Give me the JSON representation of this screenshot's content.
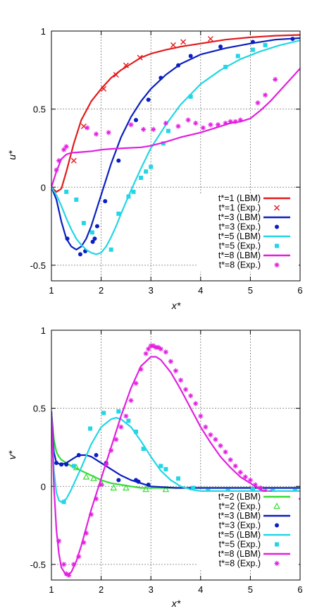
{
  "colors": {
    "t1": "#e41a1c",
    "t2": "#33dd33",
    "t3": "#0a1fbf",
    "t5": "#22d6e6",
    "t8": "#e21fe0"
  },
  "chart_data": [
    {
      "type": "line",
      "ylabel": "u*",
      "xlabel": "x*",
      "xlim": [
        1,
        6
      ],
      "ylim": [
        -0.6,
        1
      ],
      "xticks": [
        "1",
        "2",
        "3",
        "4",
        "5",
        "6"
      ],
      "yticks": [
        {
          "v": 1,
          "label": "1"
        },
        {
          "v": 0.5,
          "label": "0.5"
        },
        {
          "v": 0,
          "label": "0"
        },
        {
          "v": -0.5,
          "label": "-0.5"
        }
      ],
      "grid": true,
      "legend_position": "bottom-right",
      "series": [
        {
          "name": "t*=1 (LBM)",
          "color": "#e41a1c",
          "kind": "line",
          "x": [
            1.0,
            1.1,
            1.2,
            1.3,
            1.45,
            1.6,
            1.8,
            2.0,
            2.2,
            2.4,
            2.6,
            2.8,
            3.0,
            3.3,
            3.6,
            4.0,
            4.5,
            5.0,
            5.5,
            6.0
          ],
          "y": [
            0.0,
            -0.03,
            -0.01,
            0.1,
            0.28,
            0.43,
            0.55,
            0.63,
            0.7,
            0.75,
            0.79,
            0.83,
            0.855,
            0.88,
            0.9,
            0.92,
            0.945,
            0.96,
            0.97,
            0.975
          ]
        },
        {
          "name": "t*=1 (Exp.)",
          "color": "#e41a1c",
          "kind": "x",
          "x": [
            1.45,
            1.65,
            2.05,
            2.3,
            2.5,
            2.78,
            3.45,
            3.65,
            4.2
          ],
          "y": [
            0.17,
            0.39,
            0.63,
            0.72,
            0.78,
            0.83,
            0.91,
            0.93,
            0.95
          ]
        },
        {
          "name": "t*=3 (LBM)",
          "color": "#0a1fbf",
          "kind": "line",
          "x": [
            1.0,
            1.1,
            1.2,
            1.3,
            1.4,
            1.5,
            1.6,
            1.7,
            1.8,
            2.0,
            2.2,
            2.4,
            2.6,
            2.8,
            3.0,
            3.3,
            3.6,
            4.0,
            4.5,
            5.0,
            5.5,
            6.0
          ],
          "y": [
            0.0,
            -0.08,
            -0.22,
            -0.33,
            -0.38,
            -0.4,
            -0.38,
            -0.33,
            -0.25,
            -0.05,
            0.15,
            0.32,
            0.45,
            0.55,
            0.63,
            0.72,
            0.79,
            0.85,
            0.89,
            0.92,
            0.945,
            0.955
          ]
        },
        {
          "name": "t*=3 (Exp.)",
          "color": "#0a1fbf",
          "kind": "dot",
          "x": [
            1.32,
            1.58,
            1.68,
            1.83,
            1.87,
            1.92,
            2.08,
            2.35,
            2.7,
            2.95,
            3.2,
            3.55,
            3.8,
            4.4,
            5.05,
            5.85
          ],
          "y": [
            -0.33,
            -0.43,
            -0.41,
            -0.35,
            -0.33,
            -0.25,
            -0.09,
            0.17,
            0.43,
            0.56,
            0.7,
            0.78,
            0.84,
            0.9,
            0.93,
            0.95
          ]
        },
        {
          "name": "t*=5 (LBM)",
          "color": "#22d6e6",
          "kind": "line",
          "x": [
            1.0,
            1.1,
            1.2,
            1.3,
            1.4,
            1.5,
            1.6,
            1.7,
            1.8,
            1.9,
            2.0,
            2.1,
            2.2,
            2.3,
            2.4,
            2.6,
            2.8,
            3.0,
            3.3,
            3.6,
            4.0,
            4.4,
            4.8,
            5.2,
            5.6,
            6.0
          ],
          "y": [
            0.0,
            -0.05,
            -0.12,
            -0.2,
            -0.27,
            -0.33,
            -0.37,
            -0.4,
            -0.42,
            -0.43,
            -0.42,
            -0.38,
            -0.32,
            -0.25,
            -0.17,
            -0.02,
            0.12,
            0.25,
            0.4,
            0.53,
            0.66,
            0.75,
            0.82,
            0.87,
            0.91,
            0.94
          ]
        },
        {
          "name": "t*=5 (Exp.)",
          "color": "#22d6e6",
          "kind": "sq",
          "x": [
            1.3,
            1.5,
            1.65,
            1.82,
            2.2,
            2.35,
            2.55,
            2.65,
            2.8,
            2.9,
            3.0,
            3.25,
            3.35,
            3.8,
            4.5,
            4.75,
            5.05,
            5.3
          ],
          "y": [
            -0.03,
            -0.08,
            -0.23,
            -0.29,
            -0.4,
            -0.17,
            -0.06,
            -0.03,
            0.06,
            0.1,
            0.13,
            0.28,
            0.36,
            0.58,
            0.77,
            0.84,
            0.88,
            0.91
          ]
        },
        {
          "name": "t*=8 (LBM)",
          "color": "#e21fe0",
          "kind": "line",
          "x": [
            1.0,
            1.1,
            1.2,
            1.3,
            1.4,
            1.6,
            1.8,
            2.0,
            2.2,
            2.5,
            2.8,
            3.0,
            3.3,
            3.6,
            4.0,
            4.3,
            4.6,
            4.8,
            5.0,
            5.2,
            5.4,
            5.6,
            5.8,
            6.0
          ],
          "y": [
            0.0,
            0.1,
            0.18,
            0.21,
            0.22,
            0.225,
            0.23,
            0.24,
            0.245,
            0.25,
            0.255,
            0.265,
            0.29,
            0.32,
            0.35,
            0.38,
            0.41,
            0.42,
            0.44,
            0.49,
            0.55,
            0.62,
            0.69,
            0.76
          ]
        },
        {
          "name": "t*=8 (Exp.)",
          "color": "#e21fe0",
          "kind": "star",
          "x": [
            1.1,
            1.15,
            1.25,
            1.3,
            1.72,
            1.9,
            2.15,
            2.6,
            2.85,
            3.05,
            3.3,
            3.55,
            3.75,
            3.9,
            4.05,
            4.2,
            4.35,
            4.5,
            4.6,
            4.7,
            4.8,
            5.15,
            5.3,
            5.5
          ],
          "y": [
            0.11,
            0.17,
            0.24,
            0.26,
            0.38,
            0.34,
            0.35,
            0.4,
            0.37,
            0.37,
            0.41,
            0.39,
            0.43,
            0.41,
            0.38,
            0.4,
            0.4,
            0.41,
            0.42,
            0.42,
            0.43,
            0.54,
            0.59,
            0.69
          ]
        }
      ],
      "legend": [
        {
          "label": "t*=1 (LBM)",
          "color": "#e41a1c",
          "kind": "line"
        },
        {
          "label": "t*=1 (Exp.)",
          "color": "#e41a1c",
          "kind": "x"
        },
        {
          "label": "t*=3 (LBM)",
          "color": "#0a1fbf",
          "kind": "line"
        },
        {
          "label": "t*=3 (Exp.)",
          "color": "#0a1fbf",
          "kind": "dot"
        },
        {
          "label": "t*=5 (LBM)",
          "color": "#22d6e6",
          "kind": "line"
        },
        {
          "label": "t*=5 (Exp.)",
          "color": "#22d6e6",
          "kind": "sq"
        },
        {
          "label": "t*=8 (LBM)",
          "color": "#e21fe0",
          "kind": "line"
        },
        {
          "label": "t*=8 (Exp.)",
          "color": "#e21fe0",
          "kind": "star"
        }
      ]
    },
    {
      "type": "line",
      "ylabel": "v*",
      "xlabel": "x*",
      "xlim": [
        1,
        6
      ],
      "ylim": [
        -0.6,
        1
      ],
      "xticks": [
        "1",
        "2",
        "3",
        "4",
        "5",
        "6"
      ],
      "yticks": [
        {
          "v": 1,
          "label": "1"
        },
        {
          "v": 0.5,
          "label": "0.5"
        },
        {
          "v": 0,
          "label": "0"
        },
        {
          "v": -0.5,
          "label": "-0.5"
        }
      ],
      "grid": true,
      "legend_position": "bottom-right",
      "series": [
        {
          "name": "t*=2 (LBM)",
          "color": "#33dd33",
          "kind": "line",
          "x": [
            1.0,
            1.05,
            1.1,
            1.15,
            1.2,
            1.3,
            1.4,
            1.5,
            1.6,
            1.8,
            2.0,
            2.2,
            2.4,
            2.6,
            2.8,
            3.0,
            3.5,
            4.0,
            5.0,
            6.0
          ],
          "y": [
            0.48,
            0.3,
            0.22,
            0.19,
            0.17,
            0.15,
            0.13,
            0.115,
            0.1,
            0.07,
            0.04,
            0.02,
            0.01,
            0.0,
            -0.01,
            -0.01,
            -0.01,
            -0.01,
            -0.01,
            -0.01
          ]
        },
        {
          "name": "t*=2 (Exp.)",
          "color": "#33dd33",
          "kind": "tri",
          "x": [
            1.5,
            1.7,
            1.85,
            2.0,
            2.25,
            2.5,
            2.9,
            3.3
          ],
          "y": [
            0.12,
            0.06,
            0.05,
            0.02,
            -0.01,
            -0.01,
            -0.02,
            -0.02
          ]
        },
        {
          "name": "t*=3 (LBM)",
          "color": "#0a1fbf",
          "kind": "line",
          "x": [
            1.0,
            1.05,
            1.1,
            1.2,
            1.3,
            1.4,
            1.5,
            1.6,
            1.7,
            1.8,
            1.9,
            2.0,
            2.2,
            2.4,
            2.6,
            2.8,
            3.0,
            3.5,
            4.0,
            5.0,
            6.0
          ],
          "y": [
            0.48,
            0.22,
            0.15,
            0.14,
            0.15,
            0.17,
            0.19,
            0.2,
            0.2,
            0.19,
            0.17,
            0.15,
            0.11,
            0.07,
            0.04,
            0.02,
            0.0,
            -0.01,
            -0.01,
            -0.01,
            -0.01
          ]
        },
        {
          "name": "t*=3 (Exp.)",
          "color": "#0a1fbf",
          "kind": "dot",
          "x": [
            1.1,
            1.2,
            1.3,
            1.55,
            1.9,
            2.1,
            2.35,
            2.7,
            2.75,
            2.95
          ],
          "y": [
            0.15,
            0.14,
            0.14,
            0.2,
            0.2,
            0.15,
            0.04,
            0.04,
            0.03,
            0.01
          ]
        },
        {
          "name": "t*=5 (LBM)",
          "color": "#22d6e6",
          "kind": "line",
          "x": [
            1.0,
            1.05,
            1.1,
            1.15,
            1.2,
            1.3,
            1.4,
            1.6,
            1.8,
            2.0,
            2.2,
            2.3,
            2.4,
            2.6,
            2.8,
            3.0,
            3.2,
            3.4,
            3.6,
            3.8,
            4.0,
            5.0,
            6.0
          ],
          "y": [
            0.48,
            0.1,
            -0.04,
            -0.09,
            -0.1,
            -0.08,
            -0.02,
            0.12,
            0.27,
            0.38,
            0.43,
            0.44,
            0.43,
            0.38,
            0.29,
            0.19,
            0.1,
            0.04,
            0.0,
            -0.02,
            -0.03,
            -0.03,
            -0.03
          ]
        },
        {
          "name": "t*=5 (Exp.)",
          "color": "#22d6e6",
          "kind": "sq",
          "x": [
            1.25,
            1.45,
            1.78,
            2.05,
            2.35,
            2.55,
            2.7,
            2.85,
            3.2,
            3.3,
            3.55,
            3.85,
            4.15,
            4.55,
            5.05,
            5.45,
            5.9
          ],
          "y": [
            -0.1,
            0.13,
            0.37,
            0.47,
            0.48,
            0.42,
            0.35,
            0.24,
            0.13,
            0.11,
            0.05,
            -0.01,
            -0.03,
            -0.03,
            -0.02,
            -0.03,
            -0.03
          ]
        },
        {
          "name": "t*=8 (LBM)",
          "color": "#e21fe0",
          "kind": "line",
          "x": [
            1.0,
            1.05,
            1.1,
            1.15,
            1.2,
            1.3,
            1.4,
            1.5,
            1.6,
            1.8,
            2.0,
            2.2,
            2.4,
            2.6,
            2.8,
            3.0,
            3.1,
            3.2,
            3.4,
            3.6,
            3.8,
            4.0,
            4.2,
            4.4,
            4.6,
            4.8,
            5.0,
            5.2,
            5.4,
            5.6,
            5.8,
            6.0
          ],
          "y": [
            0.48,
            0.0,
            -0.28,
            -0.43,
            -0.52,
            -0.57,
            -0.55,
            -0.48,
            -0.38,
            -0.15,
            0.05,
            0.25,
            0.45,
            0.63,
            0.77,
            0.83,
            0.83,
            0.81,
            0.73,
            0.62,
            0.5,
            0.38,
            0.28,
            0.19,
            0.12,
            0.06,
            0.02,
            -0.02,
            -0.05,
            -0.07,
            -0.08,
            -0.08
          ]
        },
        {
          "name": "t*=8 (Exp.)",
          "color": "#e21fe0",
          "kind": "star",
          "x": [
            1.15,
            1.25,
            1.3,
            1.35,
            1.45,
            1.55,
            1.65,
            1.7,
            1.8,
            1.9,
            2.0,
            2.1,
            2.2,
            2.3,
            2.4,
            2.5,
            2.6,
            2.7,
            2.8,
            2.9,
            2.95,
            3.0,
            3.05,
            3.1,
            3.15,
            3.2,
            3.3,
            3.4,
            3.5,
            3.6,
            3.7,
            3.8,
            3.9,
            4.0,
            4.1,
            4.2,
            4.3,
            4.4,
            4.5,
            4.6,
            4.7,
            4.8,
            4.9,
            5.0,
            5.1,
            5.2,
            5.3,
            5.4,
            5.5,
            5.6,
            5.7,
            5.8,
            5.9
          ],
          "y": [
            -0.35,
            -0.5,
            -0.56,
            -0.57,
            -0.5,
            -0.45,
            -0.36,
            -0.3,
            -0.18,
            -0.08,
            0.01,
            0.14,
            0.23,
            0.3,
            0.38,
            0.45,
            0.55,
            0.66,
            0.75,
            0.85,
            0.88,
            0.9,
            0.9,
            0.89,
            0.89,
            0.88,
            0.86,
            0.8,
            0.74,
            0.68,
            0.62,
            0.58,
            0.53,
            0.45,
            0.38,
            0.33,
            0.3,
            0.26,
            0.22,
            0.17,
            0.13,
            0.09,
            0.06,
            0.04,
            0.01,
            -0.01,
            -0.03,
            -0.04,
            -0.05,
            -0.06,
            -0.07,
            -0.08,
            -0.08
          ]
        }
      ],
      "legend": [
        {
          "label": "t*=2 (LBM)",
          "color": "#33dd33",
          "kind": "line"
        },
        {
          "label": "t*=2 (Exp.)",
          "color": "#33dd33",
          "kind": "tri"
        },
        {
          "label": "t*=3 (LBM)",
          "color": "#0a1fbf",
          "kind": "line"
        },
        {
          "label": "t*=3 (Exp.)",
          "color": "#0a1fbf",
          "kind": "dot"
        },
        {
          "label": "t*=5 (LBM)",
          "color": "#22d6e6",
          "kind": "line"
        },
        {
          "label": "t*=5 (Exp.)",
          "color": "#22d6e6",
          "kind": "sq"
        },
        {
          "label": "t*=8 (LBM)",
          "color": "#e21fe0",
          "kind": "line"
        },
        {
          "label": "t*=8 (Exp.)",
          "color": "#e21fe0",
          "kind": "star"
        }
      ]
    }
  ]
}
